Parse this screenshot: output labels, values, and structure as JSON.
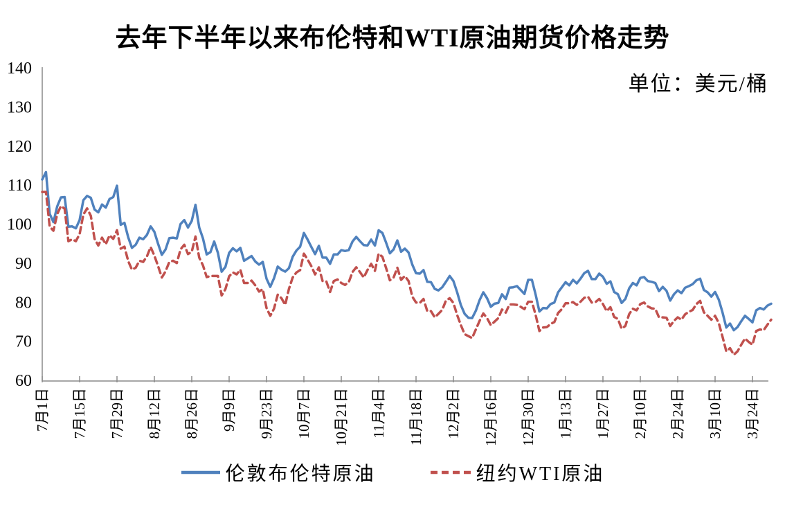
{
  "title": "去年下半年以来布伦特和WTI原油期货价格走势",
  "unit_label": "单位：美元/桶",
  "legend": [
    {
      "slug": "brent",
      "label": "伦敦布伦特原油",
      "color": "#4F81BD",
      "style": "solid"
    },
    {
      "slug": "wti",
      "label": "纽约WTI原油",
      "color": "#C0504D",
      "style": "dashed"
    }
  ],
  "chart_data": {
    "type": "line",
    "title": "去年下半年以来布伦特和WTI原油期货价格走势",
    "ylabel": "单位：美元/桶",
    "ylim": [
      60,
      140
    ],
    "y_tick_step": 10,
    "grid": false,
    "legend_position": "bottom",
    "axis_color": "#8a8a8a",
    "text_color": "#000000",
    "x_tick_labels": [
      "7月1日",
      "7月15日",
      "7月29日",
      "8月12日",
      "8月26日",
      "9月9日",
      "9月23日",
      "10月7日",
      "10月21日",
      "11月4日",
      "11月18日",
      "12月2日",
      "12月16日",
      "12月30日",
      "1月13日",
      "1月27日",
      "2月10日",
      "2月24日",
      "3月10日",
      "3月24日"
    ],
    "x_tick_every_points": 10,
    "series": [
      {
        "slug": "brent",
        "name": "伦敦布伦特原油",
        "color": "#4F81BD",
        "dash": null,
        "values": [
          111.6,
          113.5,
          102.8,
          100.7,
          104.7,
          107.0,
          107.1,
          99.5,
          99.6,
          99.1,
          101.2,
          106.3,
          107.4,
          106.9,
          103.9,
          103.2,
          105.2,
          104.4,
          106.6,
          107.1,
          110.0,
          100.0,
          100.5,
          96.8,
          94.1,
          94.9,
          96.7,
          96.3,
          97.4,
          99.6,
          98.2,
          95.1,
          92.3,
          93.7,
          96.6,
          96.7,
          96.5,
          100.2,
          101.2,
          99.3,
          101.0,
          105.1,
          99.3,
          96.5,
          92.4,
          93.0,
          95.7,
          92.8,
          88.0,
          89.2,
          92.8,
          94.0,
          93.2,
          94.1,
          90.8,
          91.4,
          92.0,
          90.6,
          89.8,
          90.5,
          86.2,
          84.1,
          86.3,
          89.3,
          88.5,
          88.0,
          88.9,
          91.8,
          93.4,
          94.4,
          97.9,
          96.2,
          94.3,
          92.5,
          94.6,
          91.6,
          91.6,
          90.0,
          92.4,
          92.4,
          93.5,
          93.3,
          93.5,
          95.7,
          96.9,
          95.8,
          94.8,
          94.7,
          96.2,
          94.7,
          98.6,
          97.9,
          95.4,
          92.7,
          93.7,
          96.0,
          93.1,
          93.9,
          92.9,
          89.8,
          87.6,
          87.5,
          88.4,
          85.4,
          85.3,
          83.6,
          83.2,
          84.0,
          85.4,
          86.9,
          85.6,
          82.7,
          79.4,
          77.2,
          76.2,
          76.1,
          78.0,
          80.7,
          82.7,
          81.2,
          79.0,
          79.8,
          80.0,
          82.2,
          81.0,
          83.9,
          84.0,
          84.3,
          83.3,
          82.3,
          85.9,
          85.9,
          82.1,
          77.8,
          78.7,
          78.6,
          79.7,
          80.1,
          82.7,
          84.0,
          85.3,
          84.5,
          85.9,
          85.0,
          86.2,
          87.6,
          88.2,
          86.1,
          86.1,
          87.5,
          86.7,
          84.9,
          85.5,
          82.8,
          82.2,
          80.0,
          81.0,
          83.7,
          85.1,
          84.5,
          86.4,
          86.6,
          85.6,
          85.4,
          85.1,
          83.0,
          84.1,
          83.1,
          80.6,
          82.2,
          83.2,
          82.5,
          83.9,
          84.3,
          84.8,
          85.8,
          86.2,
          83.3,
          82.7,
          81.6,
          82.8,
          80.8,
          77.5,
          73.7,
          74.7,
          73.0,
          73.8,
          75.3,
          76.7,
          75.9,
          75.0,
          78.1,
          78.7,
          78.3,
          79.3,
          79.8
        ]
      },
      {
        "slug": "wti",
        "name": "纽约WTI原油",
        "color": "#C0504D",
        "dash": [
          9,
          6
        ],
        "values": [
          108.4,
          108.4,
          99.5,
          98.5,
          102.7,
          104.8,
          104.1,
          95.8,
          96.3,
          95.8,
          97.6,
          102.6,
          104.2,
          102.3,
          96.4,
          94.7,
          96.7,
          95.0,
          97.3,
          96.4,
          98.6,
          93.9,
          94.4,
          90.7,
          88.5,
          89.0,
          90.8,
          90.5,
          91.9,
          94.3,
          92.1,
          89.4,
          86.5,
          88.1,
          90.5,
          90.8,
          90.2,
          93.7,
          94.9,
          92.5,
          93.1,
          97.0,
          91.6,
          89.6,
          86.6,
          86.9,
          86.9,
          86.9,
          81.9,
          83.5,
          86.8,
          87.8,
          87.3,
          88.5,
          85.1,
          85.1,
          85.7,
          84.5,
          82.9,
          83.5,
          78.7,
          76.7,
          78.5,
          82.1,
          81.2,
          79.5,
          83.6,
          86.5,
          87.8,
          88.4,
          92.6,
          91.1,
          89.4,
          87.3,
          89.1,
          85.6,
          85.5,
          82.8,
          85.6,
          86.0,
          85.1,
          84.6,
          85.3,
          87.9,
          89.1,
          87.9,
          86.5,
          88.4,
          90.0,
          88.2,
          92.6,
          91.8,
          88.9,
          85.8,
          86.5,
          89.0,
          85.9,
          86.9,
          85.6,
          81.6,
          80.1,
          80.0,
          81.0,
          77.9,
          77.9,
          76.3,
          77.2,
          78.2,
          80.6,
          81.2,
          80.0,
          76.9,
          74.3,
          72.0,
          71.5,
          71.0,
          73.2,
          75.4,
          77.3,
          76.1,
          74.3,
          75.2,
          76.1,
          78.3,
          77.5,
          79.6,
          79.6,
          79.5,
          79.0,
          78.4,
          80.3,
          80.3,
          76.9,
          72.8,
          73.7,
          73.8,
          74.6,
          75.1,
          77.4,
          78.4,
          79.9,
          79.9,
          80.2,
          79.5,
          80.3,
          81.3,
          81.6,
          80.1,
          80.2,
          81.0,
          79.7,
          77.9,
          78.9,
          76.4,
          75.9,
          73.4,
          74.1,
          77.1,
          78.5,
          78.1,
          79.7,
          80.1,
          79.1,
          78.6,
          78.5,
          76.3,
          76.3,
          76.2,
          74.1,
          75.4,
          76.3,
          75.7,
          77.1,
          77.7,
          78.2,
          79.7,
          80.5,
          77.6,
          76.7,
          75.7,
          76.7,
          74.8,
          71.3,
          67.6,
          68.4,
          66.7,
          67.6,
          69.3,
          70.9,
          70.0,
          69.3,
          72.8,
          73.2,
          73.0,
          74.4,
          75.7
        ]
      }
    ]
  }
}
